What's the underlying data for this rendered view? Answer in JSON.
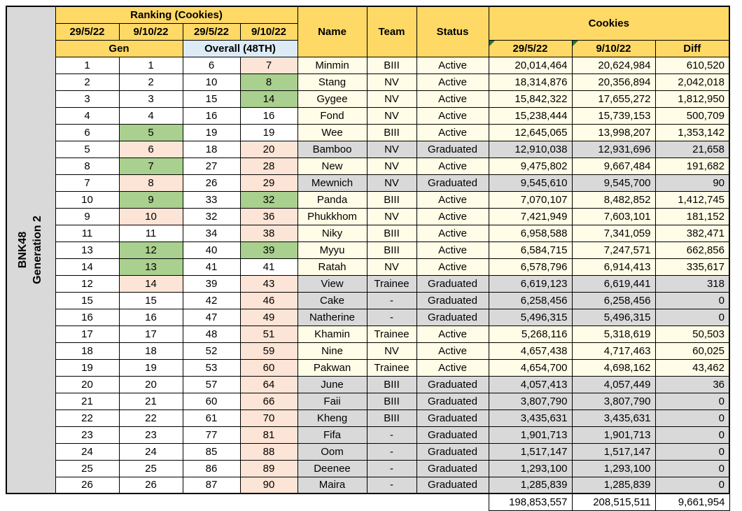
{
  "colors": {
    "header_yellow": "#FFD966",
    "overall_blue": "#DDEBF7",
    "row_cream": "#FFFDE7",
    "graduated_gray": "#D9D9D9",
    "rank_up_green": "#A9D08E",
    "rank_down_pink": "#FCE4D6",
    "white": "#FFFFFF",
    "label_gray": "#D9D9D9",
    "triangle_green": "#217346"
  },
  "sheet": {
    "group_line1": "BNK48",
    "group_line2": "Generation 2",
    "header": {
      "ranking_title": "Ranking (Cookies)",
      "rank_dates": [
        "29/5/22",
        "9/10/22",
        "29/5/22",
        "9/10/22"
      ],
      "gen_label": "Gen",
      "overall_label": "Overall (48TH)",
      "name_label": "Name",
      "team_label": "Team",
      "status_label": "Status",
      "cookies_label": "Cookies",
      "cookies_dates": [
        "29/5/22",
        "9/10/22",
        "Diff"
      ]
    }
  },
  "chart_data": {
    "type": "table",
    "title": "Ranking (Cookies) — BNK48 Generation 2",
    "columns": [
      "Gen Rank 29/5/22",
      "Gen Rank 9/10/22",
      "Overall (48TH) Rank 29/5/22",
      "Overall (48TH) Rank 9/10/22",
      "Name",
      "Team",
      "Status",
      "Cookies 29/5/22",
      "Cookies 9/10/22",
      "Diff"
    ],
    "rows": [
      {
        "gen_old": 1,
        "gen_new": 1,
        "overall_old": 6,
        "overall_new": 7,
        "name": "Minmin",
        "team": "BIII",
        "status": "Active",
        "c1": "20,014,464",
        "c2": "20,624,984",
        "diff": "610,520"
      },
      {
        "gen_old": 2,
        "gen_new": 2,
        "overall_old": 10,
        "overall_new": 8,
        "name": "Stang",
        "team": "NV",
        "status": "Active",
        "c1": "18,314,876",
        "c2": "20,356,894",
        "diff": "2,042,018"
      },
      {
        "gen_old": 3,
        "gen_new": 3,
        "overall_old": 15,
        "overall_new": 14,
        "name": "Gygee",
        "team": "NV",
        "status": "Active",
        "c1": "15,842,322",
        "c2": "17,655,272",
        "diff": "1,812,950"
      },
      {
        "gen_old": 4,
        "gen_new": 4,
        "overall_old": 16,
        "overall_new": 16,
        "name": "Fond",
        "team": "NV",
        "status": "Active",
        "c1": "15,238,444",
        "c2": "15,739,153",
        "diff": "500,709"
      },
      {
        "gen_old": 6,
        "gen_new": 5,
        "overall_old": 19,
        "overall_new": 19,
        "name": "Wee",
        "team": "BIII",
        "status": "Active",
        "c1": "12,645,065",
        "c2": "13,998,207",
        "diff": "1,353,142"
      },
      {
        "gen_old": 5,
        "gen_new": 6,
        "overall_old": 18,
        "overall_new": 20,
        "name": "Bamboo",
        "team": "NV",
        "status": "Graduated",
        "c1": "12,910,038",
        "c2": "12,931,696",
        "diff": "21,658"
      },
      {
        "gen_old": 8,
        "gen_new": 7,
        "overall_old": 27,
        "overall_new": 28,
        "name": "New",
        "team": "NV",
        "status": "Active",
        "c1": "9,475,802",
        "c2": "9,667,484",
        "diff": "191,682"
      },
      {
        "gen_old": 7,
        "gen_new": 8,
        "overall_old": 26,
        "overall_new": 29,
        "name": "Mewnich",
        "team": "NV",
        "status": "Graduated",
        "c1": "9,545,610",
        "c2": "9,545,700",
        "diff": "90"
      },
      {
        "gen_old": 10,
        "gen_new": 9,
        "overall_old": 33,
        "overall_new": 32,
        "name": "Panda",
        "team": "BIII",
        "status": "Active",
        "c1": "7,070,107",
        "c2": "8,482,852",
        "diff": "1,412,745"
      },
      {
        "gen_old": 9,
        "gen_new": 10,
        "overall_old": 32,
        "overall_new": 36,
        "name": "Phukkhom",
        "team": "NV",
        "status": "Active",
        "c1": "7,421,949",
        "c2": "7,603,101",
        "diff": "181,152"
      },
      {
        "gen_old": 11,
        "gen_new": 11,
        "overall_old": 34,
        "overall_new": 38,
        "name": "Niky",
        "team": "BIII",
        "status": "Active",
        "c1": "6,958,588",
        "c2": "7,341,059",
        "diff": "382,471"
      },
      {
        "gen_old": 13,
        "gen_new": 12,
        "overall_old": 40,
        "overall_new": 39,
        "name": "Myyu",
        "team": "BIII",
        "status": "Active",
        "c1": "6,584,715",
        "c2": "7,247,571",
        "diff": "662,856"
      },
      {
        "gen_old": 14,
        "gen_new": 13,
        "overall_old": 41,
        "overall_new": 41,
        "name": "Ratah",
        "team": "NV",
        "status": "Active",
        "c1": "6,578,796",
        "c2": "6,914,413",
        "diff": "335,617"
      },
      {
        "gen_old": 12,
        "gen_new": 14,
        "overall_old": 39,
        "overall_new": 43,
        "name": "View",
        "team": "Trainee",
        "status": "Graduated",
        "c1": "6,619,123",
        "c2": "6,619,441",
        "diff": "318"
      },
      {
        "gen_old": 15,
        "gen_new": 15,
        "overall_old": 42,
        "overall_new": 46,
        "name": "Cake",
        "team": "-",
        "status": "Graduated",
        "c1": "6,258,456",
        "c2": "6,258,456",
        "diff": "0"
      },
      {
        "gen_old": 16,
        "gen_new": 16,
        "overall_old": 47,
        "overall_new": 49,
        "name": "Natherine",
        "team": "-",
        "status": "Graduated",
        "c1": "5,496,315",
        "c2": "5,496,315",
        "diff": "0"
      },
      {
        "gen_old": 17,
        "gen_new": 17,
        "overall_old": 48,
        "overall_new": 51,
        "name": "Khamin",
        "team": "Trainee",
        "status": "Active",
        "c1": "5,268,116",
        "c2": "5,318,619",
        "diff": "50,503"
      },
      {
        "gen_old": 18,
        "gen_new": 18,
        "overall_old": 52,
        "overall_new": 59,
        "name": "Nine",
        "team": "NV",
        "status": "Active",
        "c1": "4,657,438",
        "c2": "4,717,463",
        "diff": "60,025"
      },
      {
        "gen_old": 19,
        "gen_new": 19,
        "overall_old": 53,
        "overall_new": 60,
        "name": "Pakwan",
        "team": "Trainee",
        "status": "Active",
        "c1": "4,654,700",
        "c2": "4,698,162",
        "diff": "43,462"
      },
      {
        "gen_old": 20,
        "gen_new": 20,
        "overall_old": 57,
        "overall_new": 64,
        "name": "June",
        "team": "BIII",
        "status": "Graduated",
        "c1": "4,057,413",
        "c2": "4,057,449",
        "diff": "36"
      },
      {
        "gen_old": 21,
        "gen_new": 21,
        "overall_old": 60,
        "overall_new": 66,
        "name": "Faii",
        "team": "BIII",
        "status": "Graduated",
        "c1": "3,807,790",
        "c2": "3,807,790",
        "diff": "0"
      },
      {
        "gen_old": 22,
        "gen_new": 22,
        "overall_old": 61,
        "overall_new": 70,
        "name": "Kheng",
        "team": "BIII",
        "status": "Graduated",
        "c1": "3,435,631",
        "c2": "3,435,631",
        "diff": "0"
      },
      {
        "gen_old": 23,
        "gen_new": 23,
        "overall_old": 77,
        "overall_new": 81,
        "name": "Fifa",
        "team": "-",
        "status": "Graduated",
        "c1": "1,901,713",
        "c2": "1,901,713",
        "diff": "0"
      },
      {
        "gen_old": 24,
        "gen_new": 24,
        "overall_old": 85,
        "overall_new": 88,
        "name": "Oom",
        "team": "-",
        "status": "Graduated",
        "c1": "1,517,147",
        "c2": "1,517,147",
        "diff": "0"
      },
      {
        "gen_old": 25,
        "gen_new": 25,
        "overall_old": 86,
        "overall_new": 89,
        "name": "Deenee",
        "team": "-",
        "status": "Graduated",
        "c1": "1,293,100",
        "c2": "1,293,100",
        "diff": "0"
      },
      {
        "gen_old": 26,
        "gen_new": 26,
        "overall_old": 87,
        "overall_new": 90,
        "name": "Maira",
        "team": "-",
        "status": "Graduated",
        "c1": "1,285,839",
        "c2": "1,285,839",
        "diff": "0"
      }
    ],
    "totals": {
      "c1": "198,853,557",
      "c2": "208,515,511",
      "diff": "9,661,954"
    }
  }
}
